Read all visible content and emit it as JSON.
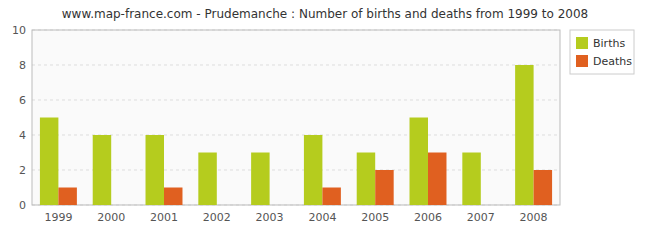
{
  "chart_data": {
    "type": "bar",
    "title": "www.map-france.com - Prudemanche : Number of births and deaths from 1999 to 2008",
    "categories": [
      "1999",
      "2000",
      "2001",
      "2002",
      "2003",
      "2004",
      "2005",
      "2006",
      "2007",
      "2008"
    ],
    "series": [
      {
        "name": "Births",
        "color": "#b5cc1e",
        "values": [
          5,
          4,
          4,
          3,
          3,
          4,
          3,
          5,
          3,
          8
        ]
      },
      {
        "name": "Deaths",
        "color": "#e06020",
        "values": [
          1,
          0,
          1,
          0,
          0,
          1,
          2,
          3,
          0,
          2
        ]
      }
    ],
    "ylim": [
      0,
      10
    ],
    "yticks": [
      0,
      2,
      4,
      6,
      8,
      10
    ],
    "grid": true,
    "legend": "upper right"
  }
}
